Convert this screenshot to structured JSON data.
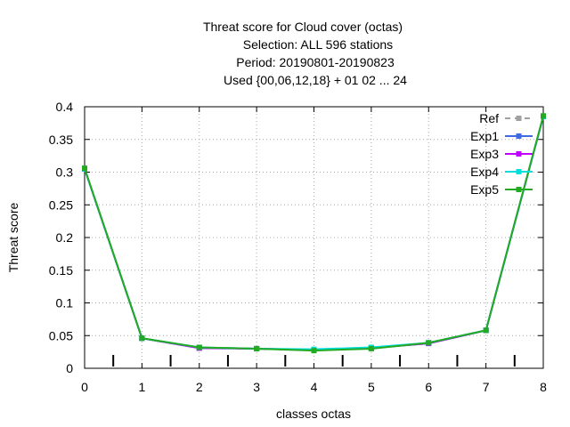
{
  "chart_data": {
    "type": "line",
    "title_lines": [
      "Threat score  for Cloud cover (octas)",
      "Selection: ALL     596 stations",
      "Period: 20190801-20190823",
      "Used {00,06,12,18} + 01 02 ... 24"
    ],
    "xlabel": "classes octas",
    "ylabel": "Threat score",
    "xlim": [
      0,
      8
    ],
    "ylim": [
      0,
      0.4
    ],
    "x_ticks": [
      "0",
      "1",
      "2",
      "3",
      "4",
      "5",
      "6",
      "7",
      "8"
    ],
    "y_ticks": [
      "0",
      "0.05",
      "0.1",
      "0.15",
      "0.2",
      "0.25",
      "0.3",
      "0.35",
      "0.4"
    ],
    "grid": true,
    "legend_position": "top-right",
    "x": [
      0,
      1,
      2,
      3,
      4,
      5,
      6,
      7,
      8
    ],
    "series": [
      {
        "name": "Ref",
        "color": "#a0a0a0",
        "dashed": true,
        "values": [
          0.305,
          0.046,
          0.031,
          0.03,
          0.028,
          0.031,
          0.039,
          0.058,
          0.385
        ]
      },
      {
        "name": "Exp1",
        "color": "#4169e1",
        "dashed": false,
        "values": [
          0.305,
          0.046,
          0.031,
          0.03,
          0.028,
          0.031,
          0.038,
          0.058,
          0.385
        ]
      },
      {
        "name": "Exp3",
        "color": "#c000ff",
        "dashed": false,
        "values": [
          0.305,
          0.046,
          0.031,
          0.03,
          0.028,
          0.031,
          0.038,
          0.058,
          0.385
        ]
      },
      {
        "name": "Exp4",
        "color": "#00dddd",
        "dashed": false,
        "values": [
          0.305,
          0.046,
          0.032,
          0.03,
          0.029,
          0.032,
          0.039,
          0.058,
          0.385
        ]
      },
      {
        "name": "Exp5",
        "color": "#22aa22",
        "dashed": false,
        "values": [
          0.306,
          0.046,
          0.032,
          0.03,
          0.027,
          0.03,
          0.039,
          0.058,
          0.386
        ]
      }
    ],
    "class_boundary_marks": [
      0.5,
      1.5,
      2.5,
      3.5,
      4.5,
      5.5,
      6.5,
      7.5
    ]
  }
}
